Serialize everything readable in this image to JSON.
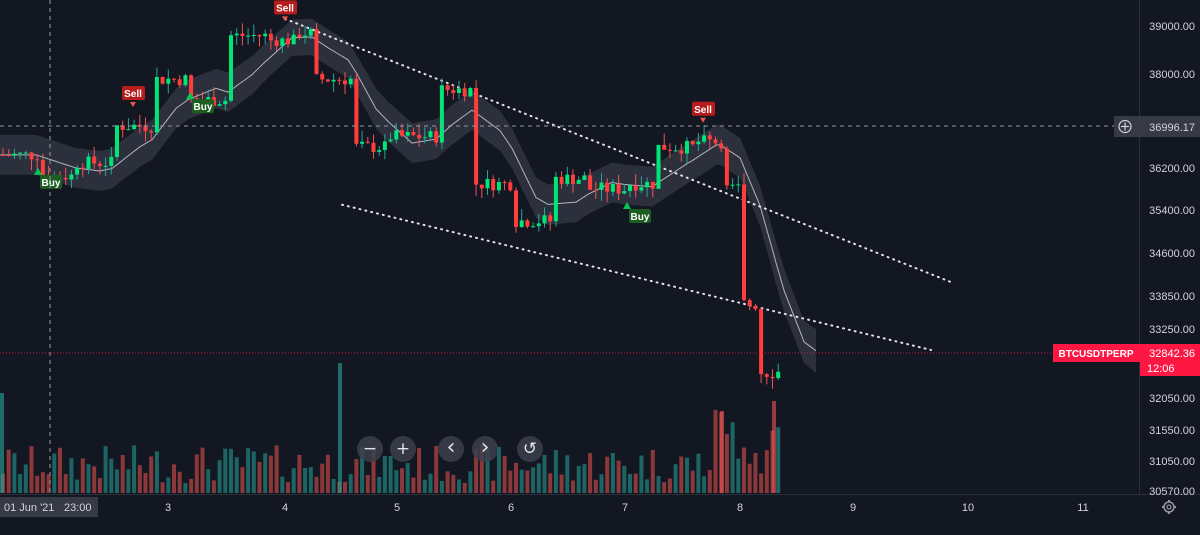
{
  "price_axis": {
    "ticks": [
      "39000.00",
      "38000.00",
      "37000.00",
      "36200.00",
      "35400.00",
      "34600.00",
      "33850.00",
      "33250.00",
      "32650.00",
      "32050.00",
      "31550.00",
      "31050.00",
      "30570.00"
    ],
    "crosshair_label": "36996.17",
    "last_symbol": "BTCUSDTPERP",
    "last_price": "32842.36",
    "countdown": "12:06"
  },
  "time_axis": {
    "first_label": "01 Jun '21",
    "crosshair_time": "23:00",
    "labels": [
      "3",
      "4",
      "5",
      "6",
      "7",
      "8",
      "9",
      "10",
      "11"
    ]
  },
  "signals": {
    "sell": "Sell",
    "buy": "Buy"
  },
  "controls": {
    "zoom_out": "−",
    "zoom_in": "+",
    "scroll_left": "‹",
    "scroll_right": "›",
    "reset": "↺"
  },
  "colors": {
    "background": "#131722",
    "up": "#26a69a",
    "down": "#ef5350",
    "buy_signal": "#00c853",
    "sell_signal": "#b71c1c",
    "band": "#363a45",
    "last_price": "#ff1744"
  },
  "chart_data": {
    "type": "candlestick",
    "symbol": "BTCUSDTPERP",
    "ylim": [
      30570,
      39450
    ],
    "last_price": 32842.36,
    "crosshair_price": 36996.17,
    "grid": false,
    "candles": [
      {
        "t": "2021-06-01 20:00",
        "o": 36450,
        "h": 36700,
        "l": 35900,
        "c": 36050
      },
      {
        "t": "2021-06-02 04:00",
        "o": 36050,
        "h": 36500,
        "l": 35900,
        "c": 36300
      },
      {
        "t": "2021-06-02 12:00",
        "o": 36300,
        "h": 37100,
        "l": 36200,
        "c": 37000
      },
      {
        "t": "2021-06-02 20:00",
        "o": 37000,
        "h": 38100,
        "l": 36900,
        "c": 37900
      },
      {
        "t": "2021-06-03 04:00",
        "o": 37900,
        "h": 38100,
        "l": 37300,
        "c": 37500
      },
      {
        "t": "2021-06-03 12:00",
        "o": 37500,
        "h": 39000,
        "l": 37400,
        "c": 38800
      },
      {
        "t": "2021-06-03 20:00",
        "o": 38800,
        "h": 39400,
        "l": 38500,
        "c": 38700
      },
      {
        "t": "2021-06-04 02:00",
        "o": 38700,
        "h": 39000,
        "l": 38400,
        "c": 38850
      },
      {
        "t": "2021-06-04 06:00",
        "o": 38850,
        "h": 39000,
        "l": 37800,
        "c": 37900
      },
      {
        "t": "2021-06-04 14:00",
        "o": 37900,
        "h": 38000,
        "l": 36500,
        "c": 36600
      },
      {
        "t": "2021-06-04 22:00",
        "o": 36600,
        "h": 37000,
        "l": 36300,
        "c": 36800
      },
      {
        "t": "2021-06-05 08:00",
        "o": 36800,
        "h": 37800,
        "l": 36700,
        "c": 37700
      },
      {
        "t": "2021-06-05 16:00",
        "o": 37700,
        "h": 37900,
        "l": 35600,
        "c": 35900
      },
      {
        "t": "2021-06-06 00:00",
        "o": 35900,
        "h": 36200,
        "l": 35000,
        "c": 35200
      },
      {
        "t": "2021-06-06 08:00",
        "o": 35200,
        "h": 36100,
        "l": 35100,
        "c": 36000
      },
      {
        "t": "2021-06-06 16:00",
        "o": 36000,
        "h": 36300,
        "l": 35600,
        "c": 35800
      },
      {
        "t": "2021-06-07 00:00",
        "o": 35800,
        "h": 36300,
        "l": 35400,
        "c": 35900
      },
      {
        "t": "2021-06-07 06:00",
        "o": 35900,
        "h": 36900,
        "l": 35800,
        "c": 36600
      },
      {
        "t": "2021-06-07 14:00",
        "o": 36600,
        "h": 36900,
        "l": 36200,
        "c": 36700
      },
      {
        "t": "2021-06-07 20:00",
        "o": 36700,
        "h": 36800,
        "l": 35700,
        "c": 35800
      },
      {
        "t": "2021-06-08 00:00",
        "o": 35800,
        "h": 35900,
        "l": 33600,
        "c": 33700
      },
      {
        "t": "2021-06-08 04:00",
        "o": 33700,
        "h": 33900,
        "l": 32300,
        "c": 32500
      },
      {
        "t": "2021-06-08 08:00",
        "o": 32500,
        "h": 33300,
        "l": 31400,
        "c": 32842
      }
    ],
    "annotations": {
      "trend_upper": [
        {
          "t": "2021-06-04 00:00",
          "p": 39150
        },
        {
          "t": "2021-06-09 20:00",
          "p": 34100
        }
      ],
      "trend_lower": [
        {
          "t": "2021-06-04 12:00",
          "p": 35500
        },
        {
          "t": "2021-06-09 16:00",
          "p": 32880
        }
      ],
      "sell_signals": [
        "2021-06-02 16:00",
        "2021-06-04 00:00",
        "2021-06-07 16:00"
      ],
      "buy_signals": [
        "2021-06-01 20:00",
        "2021-06-03 04:00",
        "2021-06-07 00:00"
      ]
    }
  }
}
